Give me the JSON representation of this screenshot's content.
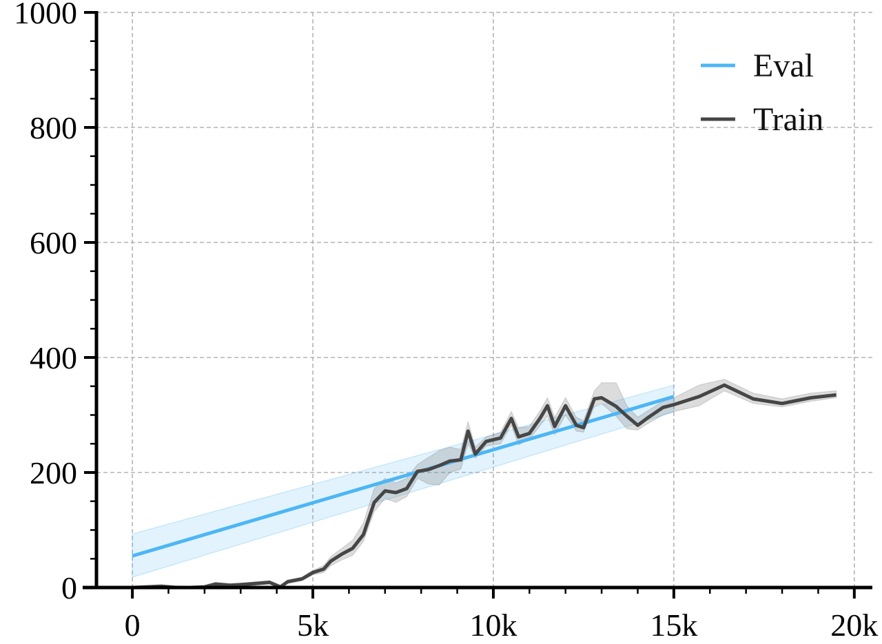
{
  "chart_data": {
    "type": "line",
    "title": "",
    "xlabel": "",
    "ylabel": "",
    "xlim": [
      -1300,
      20500
    ],
    "ylim": [
      0,
      1000
    ],
    "x_ticks": [
      0,
      5000,
      10000,
      15000,
      20000
    ],
    "x_tick_labels": [
      "0",
      "5k",
      "10k",
      "15k",
      "20k"
    ],
    "y_ticks": [
      0,
      200,
      400,
      600,
      800,
      1000
    ],
    "y_tick_labels": [
      "0",
      "200",
      "400",
      "600",
      "800",
      "1000"
    ],
    "grid": true,
    "legend_position": "top-right",
    "series": [
      {
        "name": "Eval",
        "color": "#4db6f5",
        "band_color": "#4db6f5",
        "x": [
          0,
          15000
        ],
        "y": [
          55,
          332
        ],
        "lower": [
          18,
          305
        ],
        "upper": [
          93,
          352
        ]
      },
      {
        "name": "Train",
        "color": "#464646",
        "band_color": "#808080",
        "x": [
          0,
          400,
          800,
          1200,
          1600,
          2000,
          2300,
          2700,
          3000,
          3400,
          3800,
          4100,
          4300,
          4700,
          5000,
          5300,
          5500,
          5800,
          6100,
          6400,
          6700,
          7000,
          7300,
          7600,
          7900,
          8200,
          8500,
          8800,
          9100,
          9300,
          9500,
          9800,
          10200,
          10500,
          10700,
          11000,
          11300,
          11500,
          11700,
          12000,
          12300,
          12500,
          12800,
          13000,
          13400,
          13700,
          14000,
          14300,
          14700,
          15000,
          15700,
          16400,
          17200,
          18000,
          18800,
          19500
        ],
        "y": [
          0,
          1,
          2,
          0,
          0,
          1,
          6,
          4,
          5,
          7,
          9,
          1,
          10,
          15,
          26,
          32,
          46,
          58,
          68,
          92,
          148,
          168,
          165,
          172,
          202,
          205,
          212,
          220,
          222,
          272,
          232,
          254,
          260,
          294,
          262,
          268,
          295,
          316,
          280,
          316,
          282,
          278,
          328,
          330,
          315,
          298,
          282,
          296,
          313,
          318,
          332,
          352,
          328,
          320,
          330,
          335
        ],
        "lower": [
          0,
          0,
          0,
          0,
          0,
          0,
          3,
          2,
          3,
          4,
          6,
          0,
          7,
          12,
          22,
          26,
          38,
          48,
          56,
          80,
          132,
          155,
          148,
          158,
          190,
          180,
          178,
          200,
          206,
          250,
          225,
          246,
          250,
          282,
          248,
          258,
          282,
          298,
          266,
          300,
          272,
          270,
          315,
          320,
          298,
          276,
          274,
          286,
          300,
          306,
          316,
          342,
          320,
          314,
          324,
          330
        ],
        "upper": [
          2,
          4,
          5,
          3,
          2,
          4,
          9,
          7,
          7,
          10,
          12,
          4,
          13,
          18,
          30,
          38,
          54,
          68,
          82,
          112,
          172,
          190,
          182,
          190,
          214,
          226,
          238,
          244,
          240,
          288,
          244,
          262,
          270,
          306,
          278,
          280,
          308,
          330,
          296,
          330,
          296,
          290,
          342,
          356,
          356,
          316,
          296,
          308,
          324,
          330,
          352,
          362,
          338,
          328,
          338,
          342
        ]
      }
    ]
  }
}
